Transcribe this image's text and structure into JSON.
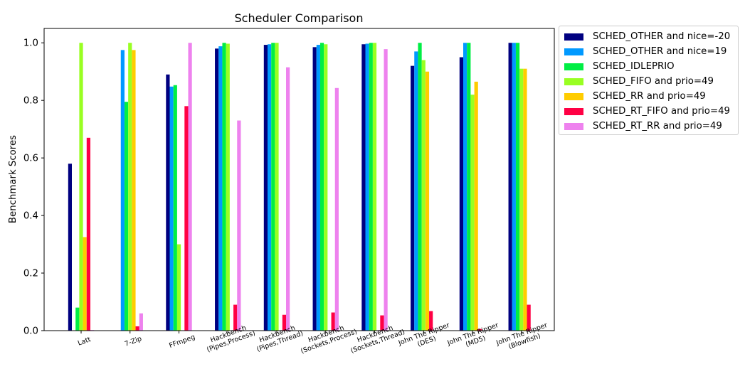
{
  "chart_data": {
    "type": "bar",
    "title": "Scheduler Comparison",
    "xlabel": "",
    "ylabel": "Benchmark Scores",
    "ylim": [
      0,
      1.05
    ],
    "yticks": [
      "0.0",
      "0.2",
      "0.4",
      "0.6",
      "0.8",
      "1.0"
    ],
    "legend_position": "outside-top-right",
    "grid": false,
    "categories": [
      [
        "Latt"
      ],
      [
        "7-Zip"
      ],
      [
        "FFmpeg"
      ],
      [
        "Hackbench",
        "(Pipes,Process)"
      ],
      [
        "Hackbench",
        "(Pipes,Thread)"
      ],
      [
        "Hackbench",
        "(Sockets,Process)"
      ],
      [
        "Hackbench",
        "(Sockets,Thread)"
      ],
      [
        "John The Ripper",
        "(DES)"
      ],
      [
        "John The Ripper",
        "(MD5)"
      ],
      [
        "John The Ripper",
        "(Blowfish)"
      ]
    ],
    "series": [
      {
        "name": "SCHED_OTHER and nice=-20",
        "color": "#000080",
        "values": [
          0.58,
          0,
          0.89,
          0.98,
          0.993,
          0.985,
          0.995,
          0.92,
          0.95,
          1.0
        ]
      },
      {
        "name": "SCHED_OTHER and nice=19",
        "color": "#0099ff",
        "values": [
          0,
          0.975,
          0.848,
          0.988,
          0.995,
          0.993,
          0.997,
          0.97,
          1.0,
          1.0
        ]
      },
      {
        "name": "SCHED_IDLEPRIO",
        "color": "#00ee44",
        "values": [
          0.08,
          0.795,
          0.853,
          1.0,
          1.0,
          1.0,
          1.0,
          1.0,
          1.0,
          1.0
        ]
      },
      {
        "name": "SCHED_FIFO and prio=49",
        "color": "#99ff22",
        "values": [
          1.0,
          1.0,
          0.3,
          0.997,
          1.0,
          0.995,
          1.0,
          0.94,
          0.82,
          0.91
        ]
      },
      {
        "name": "SCHED_RR and prio=49",
        "color": "#ffcc00",
        "values": [
          0.325,
          0.975,
          0,
          0,
          0,
          0,
          0,
          0.9,
          0.865,
          0.91
        ]
      },
      {
        "name": "SCHED_RT_FIFO and prio=49",
        "color": "#ff0044",
        "values": [
          0.67,
          0.015,
          0.78,
          0.09,
          0.055,
          0.063,
          0.053,
          0.068,
          0.006,
          0.09
        ]
      },
      {
        "name": "SCHED_RT_RR and prio=49",
        "color": "#ee82ee",
        "values": [
          0.002,
          0.06,
          1.0,
          0.73,
          0.915,
          0.843,
          0.978,
          0,
          0,
          0
        ]
      }
    ]
  }
}
